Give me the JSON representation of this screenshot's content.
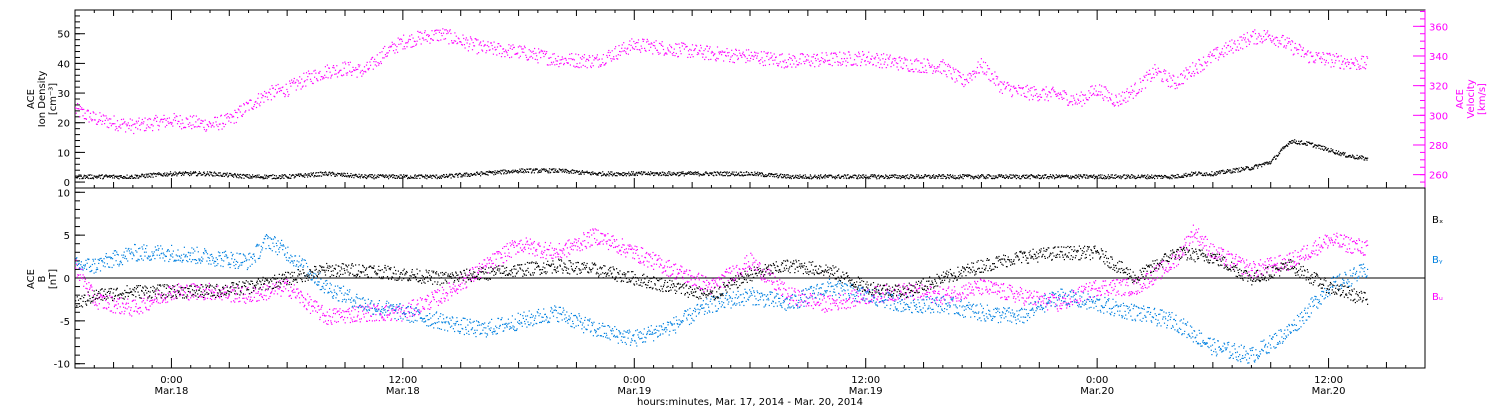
{
  "footer": {
    "time_label": "hours:minutes, Mar. 17, 2014 - Mar. 20, 2014"
  },
  "colors": {
    "density": "#000000",
    "velocity": "#ff00ff",
    "bx": "#000000",
    "by": "#0080e0",
    "bz": "#ff00ff",
    "axis": "#000000"
  },
  "chart_data": [
    {
      "type": "scatter",
      "panel": "plasma",
      "x_unit": "hours since 2014-03-17 00:00",
      "xlim": [
        19,
        89
      ],
      "x_tick_positions": [
        24,
        36,
        48,
        60,
        72,
        84
      ],
      "x_tick_labels": [
        [
          "0:00",
          "Mar.18"
        ],
        [
          "12:00",
          "Mar.18"
        ],
        [
          "0:00",
          "Mar.19"
        ],
        [
          "12:00",
          "Mar.19"
        ],
        [
          "0:00",
          "Mar.20"
        ],
        [
          "12:00",
          "Mar.20"
        ]
      ],
      "y_left": {
        "label_lines": [
          "ACE",
          "Ion Density",
          "[cm⁻³]"
        ],
        "ylim": [
          -2,
          58
        ],
        "ticks": [
          0,
          10,
          20,
          30,
          40,
          50
        ]
      },
      "y_right": {
        "label_lines": [
          "ACE",
          "Velocity",
          "[km/s]"
        ],
        "ylim": [
          251,
          371
        ],
        "ticks": [
          260,
          280,
          300,
          320,
          340,
          360
        ]
      },
      "series": [
        {
          "key": "density",
          "axis": "left",
          "x": [
            19,
            20,
            22,
            24,
            26,
            28,
            30,
            32,
            34,
            36,
            38,
            40,
            42,
            44,
            46,
            48,
            50,
            52,
            54,
            56,
            58,
            60,
            62,
            64,
            66,
            68,
            70,
            72,
            74,
            76,
            77,
            78,
            79,
            80,
            81,
            82,
            83,
            84,
            85,
            86
          ],
          "values": [
            2,
            2,
            2,
            3,
            3,
            2,
            2,
            3,
            2,
            2,
            2,
            3,
            4,
            4,
            3,
            3,
            3,
            3,
            3,
            2,
            2,
            2,
            2,
            2,
            2,
            2,
            2,
            2,
            2,
            2,
            3,
            3,
            4,
            5,
            7,
            14,
            13,
            11,
            9,
            8
          ]
        },
        {
          "key": "velocity",
          "axis": "right",
          "x": [
            19,
            20,
            22,
            24,
            26,
            27,
            28,
            29,
            30,
            31,
            32,
            33,
            34,
            35,
            36,
            37,
            38,
            40,
            42,
            44,
            46,
            48,
            50,
            52,
            54,
            56,
            58,
            60,
            62,
            64,
            65,
            66,
            67,
            68,
            70,
            71,
            72,
            73,
            74,
            75,
            76,
            77,
            78,
            79,
            80,
            81,
            82,
            83,
            84,
            85,
            86
          ],
          "values": [
            304,
            298,
            293,
            297,
            294,
            297,
            307,
            315,
            318,
            325,
            330,
            332,
            330,
            342,
            350,
            353,
            355,
            346,
            343,
            338,
            337,
            348,
            345,
            342,
            340,
            337,
            338,
            339,
            335,
            333,
            323,
            334,
            320,
            316,
            314,
            310,
            318,
            310,
            318,
            330,
            322,
            332,
            340,
            347,
            353,
            354,
            347,
            340,
            338,
            336,
            335
          ]
        }
      ]
    },
    {
      "type": "scatter",
      "panel": "magnetic-field",
      "x_unit": "hours since 2014-03-17 00:00",
      "xlim": [
        19,
        89
      ],
      "y_left": {
        "label_lines": [
          "ACE",
          "B",
          "[nT]"
        ],
        "ylim": [
          -10.5,
          10.5
        ],
        "ticks": [
          -10,
          -5,
          0,
          5,
          10
        ]
      },
      "series": [
        {
          "key": "bx",
          "name": "Bₓ",
          "x": [
            19,
            20,
            22,
            24,
            26,
            28,
            30,
            32,
            34,
            36,
            38,
            40,
            42,
            44,
            46,
            48,
            50,
            52,
            54,
            56,
            58,
            60,
            62,
            64,
            66,
            68,
            70,
            72,
            74,
            76,
            78,
            80,
            82,
            84,
            86
          ],
          "values": [
            -3,
            -2,
            -1.5,
            -1.5,
            -1.5,
            -1,
            0,
            1,
            1,
            0.5,
            0,
            0.5,
            1,
            1.5,
            1,
            0,
            -1,
            -2,
            0.5,
            1.5,
            1,
            -1,
            -1.5,
            0,
            1.5,
            2.5,
            3,
            3,
            0,
            3,
            2.5,
            0,
            1.5,
            -1,
            -2.5
          ]
        },
        {
          "key": "by",
          "name": "Bᵧ",
          "x": [
            19,
            20,
            22,
            24,
            26,
            28,
            29,
            30,
            32,
            34,
            36,
            38,
            40,
            42,
            44,
            46,
            48,
            50,
            52,
            54,
            56,
            58,
            60,
            62,
            64,
            66,
            68,
            70,
            72,
            74,
            76,
            78,
            80,
            82,
            84,
            86
          ],
          "values": [
            1.5,
            1.5,
            3,
            3,
            2.5,
            2,
            4.5,
            3,
            -1,
            -3,
            -4,
            -5,
            -6,
            -5,
            -4,
            -6,
            -7,
            -5.5,
            -3,
            -2,
            -3,
            -1,
            -2,
            -3,
            -3,
            -4,
            -4.5,
            -2,
            -3,
            -4,
            -5,
            -8,
            -9,
            -6,
            -1,
            1
          ]
        },
        {
          "key": "bz",
          "name": "Bᵤ",
          "x": [
            19,
            20,
            22,
            24,
            26,
            28,
            30,
            32,
            34,
            36,
            38,
            40,
            42,
            44,
            46,
            48,
            50,
            52,
            54,
            56,
            58,
            60,
            62,
            64,
            66,
            68,
            70,
            72,
            74,
            76,
            77,
            78,
            80,
            82,
            84,
            86
          ],
          "values": [
            1.5,
            -2.5,
            -3.5,
            -1.5,
            -1.5,
            -2,
            -1,
            -4.5,
            -4,
            -4,
            -2,
            1,
            4,
            3,
            5,
            3,
            1,
            -1,
            2,
            -2,
            -3,
            -2,
            -1.5,
            -2,
            -1,
            -2,
            -3,
            -1,
            -1,
            2,
            5.5,
            3,
            1,
            2,
            4.5,
            3.5
          ]
        }
      ],
      "zero_line": true
    }
  ]
}
